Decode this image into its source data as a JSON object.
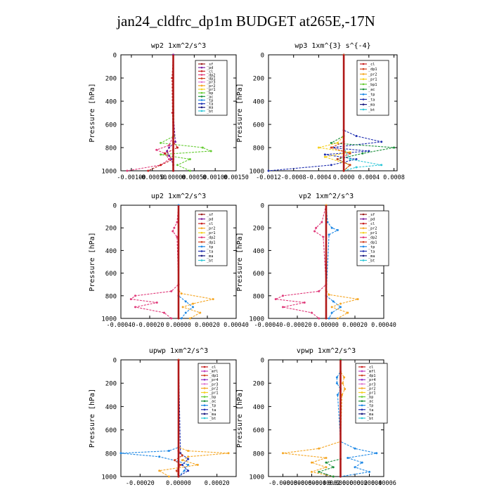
{
  "title": "jan24_cldfrc_dp1m  BUDGET at265E,-17N",
  "colors": {
    "sf": "#9b1e1e",
    "pd": "#7a1fa0",
    "cl": "#c81e1e",
    "dp2": "#e03a7a",
    "dp1": "#d04020",
    "pr3": "#e07ad0",
    "pr2": "#f5a623",
    "pr1": "#f5d020",
    "bp": "#66cc33",
    "ac": "#1a8f3a",
    "tp": "#1e88e5",
    "ta": "#1f2fb0",
    "ma": "#1a1a80",
    "bt": "#30c8d8",
    "mfl": "#c040c0",
    "pr4": "#9030c0"
  },
  "chart_data": [
    {
      "type": "line",
      "title": "wp2  1xm^2/s^3",
      "ylabel": "Pressure [hPa]",
      "xlim": [
        -0.00125,
        0.0015
      ],
      "ylim": [
        1000,
        0
      ],
      "xticks": [
        -0.001,
        -0.0005,
        0,
        0.0005,
        0.001,
        0.0015
      ],
      "xtick_labels": [
        "-0.00100",
        "-0.00050",
        "0.00000",
        "0.00050",
        "0.00100",
        "0.00150"
      ],
      "yticks": [
        0,
        200,
        400,
        600,
        800,
        1000
      ],
      "ytick_labels": [
        "0",
        "200",
        "400",
        "600",
        "800",
        "1000"
      ],
      "legend": [
        "_sf",
        "_pd",
        "_cl",
        "_dp2",
        "_dp1",
        "_pr3",
        "_pr2",
        "_pr1",
        "_bp",
        "_ac",
        "_tp",
        "_ta",
        "_ma",
        "_bt"
      ],
      "series": [
        {
          "name": "_bp",
          "p": [
            0,
            700,
            760,
            800,
            830,
            860,
            900,
            950,
            1000
          ],
          "x": [
            0,
            2e-05,
            -0.0003,
            0.0007,
            0.0009,
            -0.0003,
            0.0004,
            0.0001,
            0.0004
          ]
        },
        {
          "name": "_dp2",
          "p": [
            0,
            700,
            780,
            820,
            850,
            900,
            950,
            1000
          ],
          "x": [
            0,
            0,
            -0.0001,
            -0.0004,
            -0.0002,
            -0.0001,
            -0.0003,
            -0.0011
          ]
        },
        {
          "name": "_cl",
          "p": [
            0,
            200,
            500,
            750,
            800,
            850,
            900,
            950,
            1000
          ],
          "x": [
            0,
            -3e-05,
            -2e-05,
            0,
            0.0001,
            -0.0002,
            0,
            -0.0003,
            -0.0006
          ]
        },
        {
          "name": "_pd",
          "p": [
            0,
            500,
            750,
            800,
            830,
            870,
            900,
            950,
            1000
          ],
          "x": [
            0,
            0,
            5e-05,
            -0.0001,
            -0.00015,
            -0.0001,
            -5e-05,
            0,
            0
          ]
        },
        {
          "name": "_sf",
          "p": [
            0,
            1000
          ],
          "x": [
            0,
            0
          ]
        }
      ]
    },
    {
      "type": "line",
      "title": "wp3  1xm^{3} s^{-4}",
      "ylabel": "Pressure [hPa]",
      "xlim": [
        -0.0012,
        0.00085
      ],
      "ylim": [
        1000,
        0
      ],
      "xticks": [
        -0.0012,
        -0.0008,
        -0.0004,
        0,
        0.0004,
        0.0008
      ],
      "xtick_labels": [
        "-0.0012",
        "-0.0008",
        "-0.0004",
        "0.0000",
        "0.0004",
        "0.0008"
      ],
      "yticks": [
        0,
        200,
        400,
        600,
        800,
        1000
      ],
      "ytick_labels": [
        "0",
        "200",
        "400",
        "600",
        "800",
        "1000"
      ],
      "legend": [
        "_cl",
        "_dp1",
        "_pr2",
        "_pr1",
        "_bp1",
        "_ac",
        "_tp",
        "_ta",
        "_ma",
        "_bt"
      ],
      "series": [
        {
          "name": "_ta",
          "p": [
            0,
            650,
            700,
            750,
            800,
            830,
            860,
            900,
            950,
            1000
          ],
          "x": [
            0,
            0,
            0.0002,
            0.0006,
            -0.0002,
            0.0004,
            -0.0003,
            0.0002,
            -0.0002,
            -0.0012
          ]
        },
        {
          "name": "_ac",
          "p": [
            0,
            700,
            760,
            800,
            850,
            900,
            950,
            1000
          ],
          "x": [
            0,
            0,
            -0.0002,
            0.0008,
            0.0003,
            -0.0001,
            0.0001,
            0
          ]
        },
        {
          "name": "_pr1",
          "p": [
            0,
            700,
            760,
            800,
            840,
            880,
            950,
            1000
          ],
          "x": [
            0,
            0,
            -0.0001,
            -0.0004,
            0.0001,
            -0.0003,
            0.0001,
            0
          ]
        },
        {
          "name": "_bt",
          "p": [
            0,
            800,
            900,
            950,
            970,
            1000
          ],
          "x": [
            0,
            0,
            0.0001,
            0.0006,
            0.0002,
            0
          ]
        },
        {
          "name": "_dp1",
          "p": [
            0,
            750,
            800,
            850,
            900,
            950,
            1000
          ],
          "x": [
            0,
            0,
            -0.0002,
            0.0001,
            -0.0001,
            0.0001,
            0
          ]
        },
        {
          "name": "_cl",
          "p": [
            0,
            1000
          ],
          "x": [
            0,
            0
          ]
        }
      ]
    },
    {
      "type": "line",
      "title": "up2  1xm^2/s^3",
      "ylabel": "Pressure [hPa]",
      "xlim": [
        -0.0004,
        0.0004
      ],
      "ylim": [
        1000,
        0
      ],
      "xticks": [
        -0.0004,
        -0.0002,
        0,
        0.0002,
        0.0004
      ],
      "xtick_labels": [
        "-0.00040",
        "-0.00020",
        "0.00000",
        "0.00020",
        "0.00040"
      ],
      "yticks": [
        0,
        200,
        400,
        600,
        800,
        1000
      ],
      "ytick_labels": [
        "0",
        "200",
        "400",
        "600",
        "800",
        "1000"
      ],
      "legend": [
        "_sf",
        "_pd",
        "_cl",
        "_pr2",
        "_pr1",
        "_dp2",
        "_dp1",
        "_tp",
        "_ta",
        "_ma",
        "_bt"
      ],
      "series": [
        {
          "name": "_dp2",
          "p": [
            0,
            150,
            200,
            230,
            280,
            700,
            760,
            800,
            830,
            860,
            900,
            950,
            1000
          ],
          "x": [
            0,
            -1e-05,
            -3e-05,
            -4e-05,
            -1e-05,
            0,
            -5e-05,
            -0.0003,
            -0.00033,
            -0.00015,
            -0.0003,
            -0.0001,
            -5e-05
          ]
        },
        {
          "name": "_pr2",
          "p": [
            0,
            750,
            780,
            830,
            870,
            900,
            950,
            1000
          ],
          "x": [
            0,
            0,
            2e-05,
            0.00024,
            0.0001,
            3e-05,
            0.00015,
            8e-05
          ]
        },
        {
          "name": "_tp",
          "p": [
            0,
            800,
            850,
            900,
            950,
            1000
          ],
          "x": [
            0,
            0,
            5e-05,
            0.0001,
            5e-05,
            2e-05
          ]
        },
        {
          "name": "_sf",
          "p": [
            0,
            1000
          ],
          "x": [
            0,
            0
          ]
        }
      ]
    },
    {
      "type": "line",
      "title": "vp2  1xm^2/s^3",
      "ylabel": "Pressure [hPa]",
      "xlim": [
        -0.0004,
        0.0004
      ],
      "ylim": [
        1000,
        0
      ],
      "xticks": [
        -0.0004,
        -0.0002,
        0,
        0.0002,
        0.0004
      ],
      "xtick_labels": [
        "-0.00040",
        "-0.00020",
        "0.00000",
        "0.00020",
        "0.00040"
      ],
      "yticks": [
        0,
        200,
        400,
        600,
        800,
        1000
      ],
      "ytick_labels": [
        "0",
        "200",
        "400",
        "600",
        "800",
        "1000"
      ],
      "legend": [
        "_sf",
        "_pd",
        "_cl",
        "_pr2",
        "_pr1",
        "_dp2",
        "_dp1",
        "_tp",
        "_ta",
        "_ma",
        "_bt"
      ],
      "series": [
        {
          "name": "_dp2",
          "p": [
            0,
            150,
            200,
            230,
            280,
            700,
            760,
            800,
            830,
            860,
            900,
            950,
            1000
          ],
          "x": [
            0,
            -3e-05,
            -7e-05,
            -8e-05,
            -2e-05,
            0,
            -5e-05,
            -0.0003,
            -0.00035,
            -0.00015,
            -0.0003,
            -0.0001,
            -5e-05
          ]
        },
        {
          "name": "_tp",
          "p": [
            0,
            150,
            200,
            220,
            260,
            800,
            850,
            900,
            950,
            1000
          ],
          "x": [
            0,
            1e-05,
            4e-05,
            8e-05,
            2e-05,
            0,
            5e-05,
            0.0001,
            4e-05,
            2e-05
          ]
        },
        {
          "name": "_pr2",
          "p": [
            0,
            750,
            790,
            830,
            870,
            900,
            950,
            1000
          ],
          "x": [
            0,
            0,
            2e-05,
            0.00022,
            0.0001,
            4e-05,
            0.00015,
            8e-05
          ]
        },
        {
          "name": "_sf",
          "p": [
            0,
            1000
          ],
          "x": [
            0,
            0
          ]
        }
      ]
    },
    {
      "type": "line",
      "title": "upwp  1xm^2/s^3",
      "ylabel": "Pressure [hPa]",
      "xlim": [
        -0.0003,
        0.0003
      ],
      "ylim": [
        1000,
        0
      ],
      "xticks": [
        -0.0002,
        0,
        0.0002
      ],
      "xtick_labels": [
        "-0.00020",
        "0.00000",
        "0.00020"
      ],
      "yticks": [
        0,
        200,
        400,
        600,
        800,
        1000
      ],
      "ytick_labels": [
        "0",
        "200",
        "400",
        "600",
        "800",
        "1000"
      ],
      "legend": [
        "_cl",
        "_mfl",
        "_dp1",
        "_pr4",
        "_pr3",
        "_pr2",
        "_pr1",
        "_bp",
        "_ac",
        "_tp",
        "_ta",
        "_ma",
        "_bt"
      ],
      "series": [
        {
          "name": "_tp",
          "p": [
            0,
            750,
            780,
            800,
            830,
            870,
            900,
            950,
            1000
          ],
          "x": [
            0,
            0,
            -5e-05,
            -0.0003,
            -0.0001,
            0,
            5e-05,
            3e-05,
            0
          ]
        },
        {
          "name": "_pr2",
          "p": [
            0,
            750,
            780,
            800,
            830,
            860,
            900,
            950,
            1000
          ],
          "x": [
            0,
            0,
            5e-05,
            0.00026,
            5e-05,
            2e-05,
            0.0001,
            -0.0001,
            -5e-05
          ]
        },
        {
          "name": "_ta",
          "p": [
            0,
            800,
            850,
            900,
            950,
            1000
          ],
          "x": [
            0,
            1e-05,
            5e-05,
            2e-05,
            5e-05,
            0
          ]
        },
        {
          "name": "_dp1",
          "p": [
            0,
            780,
            820,
            860,
            900,
            950,
            1000
          ],
          "x": [
            0,
            0,
            2e-05,
            -2e-05,
            1e-05,
            -1e-05,
            0
          ]
        },
        {
          "name": "_cl",
          "p": [
            0,
            1000
          ],
          "x": [
            0,
            0
          ]
        }
      ]
    },
    {
      "type": "line",
      "title": "vpwp  1xm^2/s^3",
      "ylabel": "Pressure [hPa]",
      "xlim": [
        -0.0001,
        6e-05
      ],
      "ylim": [
        1000,
        0
      ],
      "xticks": [
        -8e-05,
        -6e-05,
        -4e-05,
        -2e-05,
        0,
        2e-05,
        4e-05,
        6e-05
      ],
      "xtick_labels": [
        "-0.00008",
        "-0.00006",
        "-0.00004",
        "-0.00002",
        "0.00000",
        "0.00002",
        "0.00004",
        "0.00006"
      ],
      "yticks": [
        0,
        200,
        400,
        600,
        800,
        1000
      ],
      "ytick_labels": [
        "0",
        "200",
        "400",
        "600",
        "800",
        "1000"
      ],
      "legend": [
        "_cl",
        "_mfl",
        "_dp1",
        "_pr4",
        "_pr3",
        "_pr2",
        "_pr1",
        "_bp",
        "_ac",
        "_tp",
        "_ta",
        "_ma",
        "_bt"
      ],
      "series": [
        {
          "name": "_tp",
          "p": [
            0,
            100,
            150,
            200,
            250,
            300,
            700,
            760,
            800,
            840,
            880,
            920,
            960,
            1000
          ],
          "x": [
            0,
            0,
            -5e-06,
            -5e-06,
            0,
            -4e-06,
            0,
            2e-05,
            5e-05,
            1e-05,
            3e-05,
            2e-05,
            4e-05,
            0
          ]
        },
        {
          "name": "_pr2",
          "p": [
            0,
            100,
            150,
            200,
            250,
            300,
            700,
            760,
            800,
            840,
            880,
            920,
            960,
            1000
          ],
          "x": [
            0,
            0,
            5e-06,
            3e-06,
            6e-06,
            2e-06,
            0,
            -3e-05,
            -8e-05,
            -2e-05,
            -4e-05,
            -2e-05,
            -4e-05,
            -1e-05
          ]
        },
        {
          "name": "_ac",
          "p": [
            0,
            850,
            880,
            920,
            960,
            1000
          ],
          "x": [
            0,
            0,
            -2e-05,
            -1e-05,
            -3e-05,
            -1e-05
          ]
        },
        {
          "name": "_cl",
          "p": [
            0,
            1000
          ],
          "x": [
            0,
            0
          ]
        }
      ]
    }
  ]
}
